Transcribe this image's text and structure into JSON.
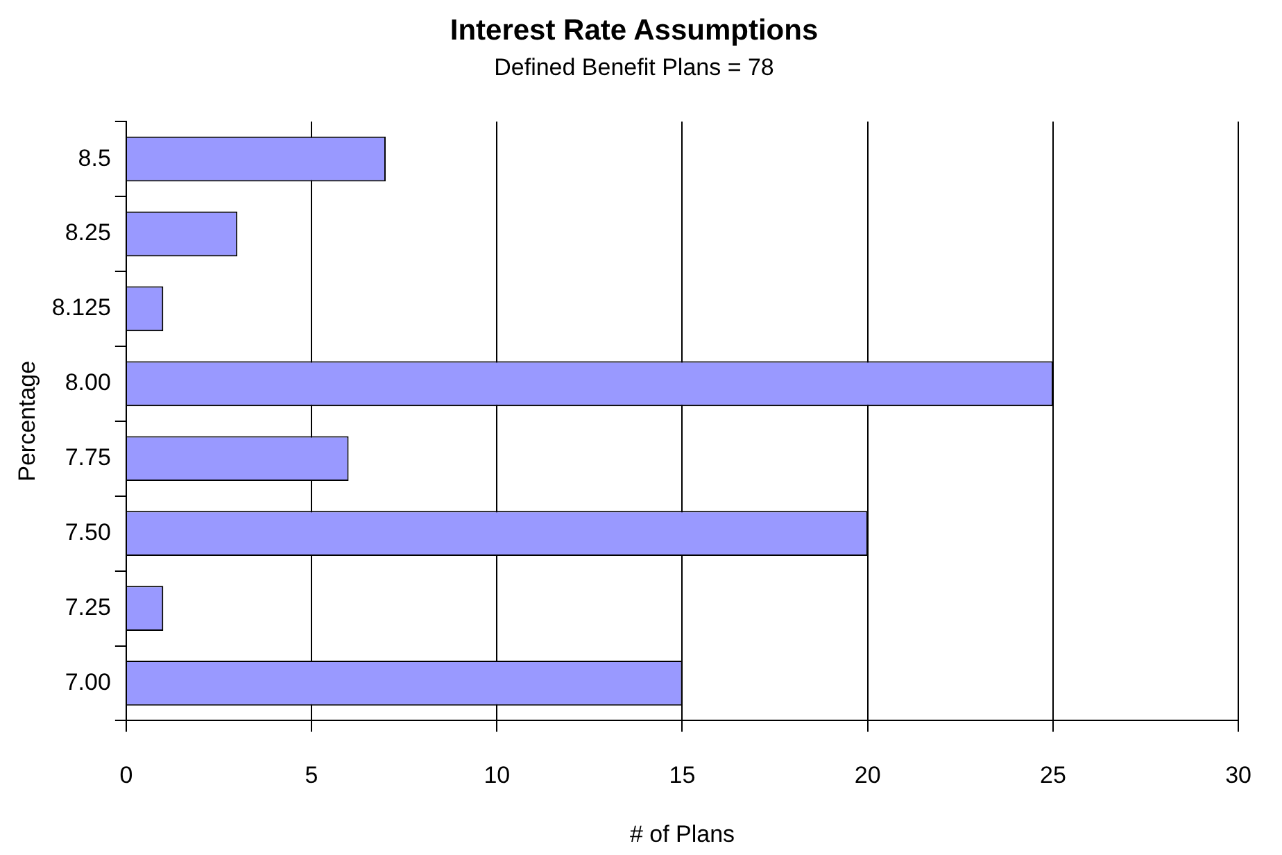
{
  "chart_data": {
    "type": "bar",
    "orientation": "horizontal",
    "title": "Interest Rate Assumptions",
    "subtitle": "Defined Benefit Plans = 78",
    "xlabel": "# of Plans",
    "ylabel": "Percentage",
    "categories": [
      "8.5",
      "8.25",
      "8.125",
      "8.00",
      "7.75",
      "7.50",
      "7.25",
      "7.00"
    ],
    "values": [
      7,
      3,
      1,
      25,
      6,
      20,
      1,
      15
    ],
    "color": "#9999ff",
    "xlim": [
      0,
      30
    ],
    "xticks": [
      0,
      5,
      10,
      15,
      20,
      25,
      30
    ],
    "grid": "x",
    "legend": false
  }
}
